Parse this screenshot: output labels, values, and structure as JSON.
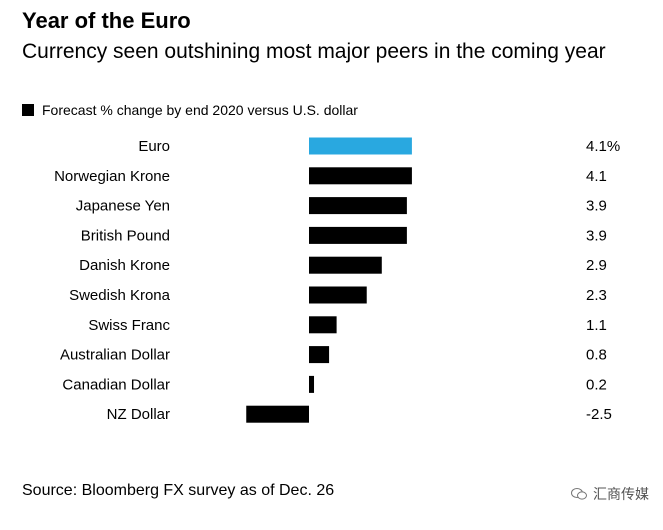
{
  "header": {
    "title": "Year of the Euro",
    "subtitle": "Currency seen outshining most major peers in the coming year"
  },
  "legend": {
    "label": "Forecast % change by end 2020 versus U.S. dollar"
  },
  "footer": {
    "source": "Source: Bloomberg FX survey as of Dec. 26",
    "watermark": "汇商传媒"
  },
  "colors": {
    "highlight": "#29a8e0",
    "bar": "#000000"
  },
  "chart_data": {
    "type": "bar",
    "orientation": "horizontal",
    "categories": [
      "Euro",
      "Norwegian Krone",
      "Japanese Yen",
      "British Pound",
      "Danish Krone",
      "Swedish Krona",
      "Swiss Franc",
      "Australian Dollar",
      "Canadian Dollar",
      "NZ Dollar"
    ],
    "values": [
      4.1,
      4.1,
      3.9,
      3.9,
      2.9,
      2.3,
      1.1,
      0.8,
      0.2,
      -2.5
    ],
    "value_labels": [
      "4.1%",
      "4.1",
      "3.9",
      "3.9",
      "2.9",
      "2.3",
      "1.1",
      "0.8",
      "0.2",
      "-2.5"
    ],
    "highlight_index": 0,
    "xlim": [
      -2.6,
      4.1
    ],
    "grid": false,
    "legend_position": "top-left"
  }
}
